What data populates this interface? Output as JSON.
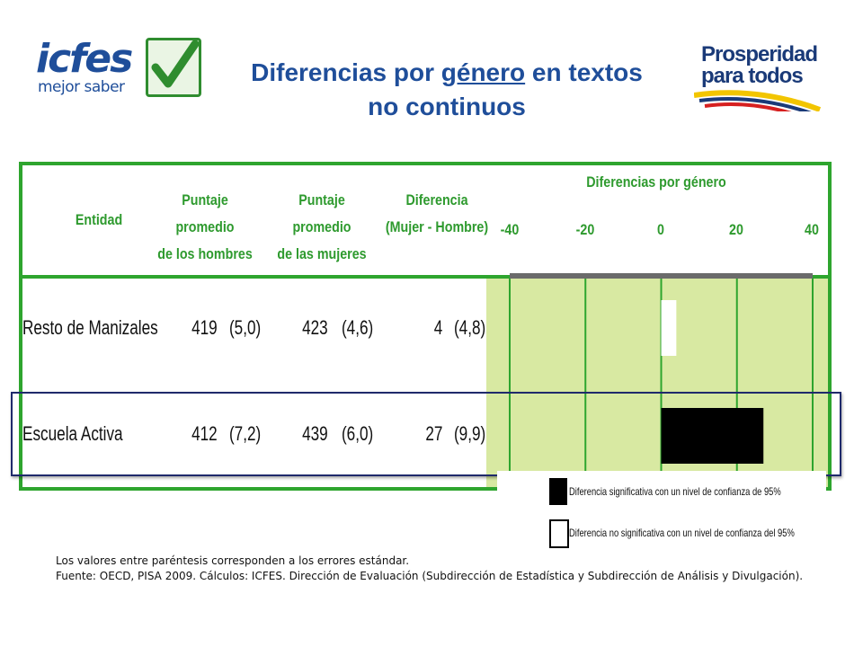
{
  "header": {
    "icfes_logo_text": "icfes",
    "icfes_logo_subtext": "mejor saber",
    "title_line1_a": "Diferencias por ",
    "title_line1_u": "género",
    "title_line1_b": " en textos",
    "title_line2": "no continuos",
    "prosperidad_line1": "Prosperidad",
    "prosperidad_line2": "para todos"
  },
  "table": {
    "col_entidad": "Entidad",
    "col_hombres_1": "Puntaje promedio",
    "col_hombres_2": "de los hombres",
    "col_mujeres_1": "Puntaje promedio",
    "col_mujeres_2": "de las mujeres",
    "col_dif_1": "Diferencia",
    "col_dif_2": "(Mujer - Hombre)",
    "col_difgen": "Diferencias por género",
    "rows": [
      {
        "entidad": "Resto de Manizales",
        "hombres": "419",
        "hombres_se": "(5,0)",
        "mujeres": "423",
        "mujeres_se": "(4,6)",
        "dif": "4",
        "dif_se": "(4,8)"
      },
      {
        "entidad": "Escuela Activa",
        "hombres": "412",
        "hombres_se": "(7,2)",
        "mujeres": "439",
        "mujeres_se": "(6,0)",
        "dif": "27",
        "dif_se": "(9,9)"
      }
    ]
  },
  "chart_data": {
    "type": "bar",
    "orientation": "horizontal",
    "categories": [
      "Resto de Manizales",
      "Escuela Activa"
    ],
    "values": [
      4,
      27
    ],
    "significant": [
      false,
      true
    ],
    "xlim": [
      -40,
      40
    ],
    "ticks": [
      "-40",
      "-20",
      "0",
      "20",
      "40"
    ],
    "grid": true,
    "colors": {
      "significant": "#000000",
      "not_significant": "#ffffff",
      "background": "#d8e9a2",
      "grid": "#2ea52e"
    }
  },
  "legend": {
    "significant": "Diferencia significativa  con un nivel de confianza de 95%",
    "not_significant": "Diferencia no significativa con un nivel de confianza del 95%"
  },
  "footer": {
    "line1": "Los valores entre paréntesis corresponden a los errores estándar.",
    "line2": "Fuente: OECD, PISA 2009.  Cálculos: ICFES. Dirección de Evaluación (Subdirección de Estadística y Subdirección de Análisis y Divulgación)."
  }
}
